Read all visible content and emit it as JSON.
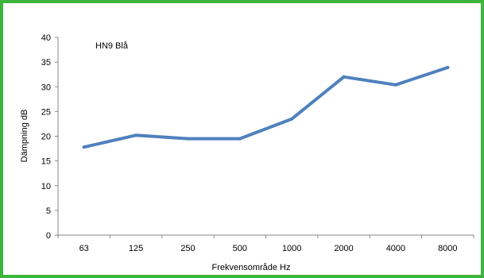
{
  "chart_data": {
    "type": "line",
    "categories": [
      "63",
      "125",
      "250",
      "500",
      "1000",
      "2000",
      "4000",
      "8000"
    ],
    "series": [
      {
        "name": "HN9 Blå",
        "values": [
          17.8,
          20.2,
          19.5,
          19.5,
          23.5,
          32.0,
          30.4,
          33.9
        ]
      }
    ],
    "xlabel": "Frekvensområde Hz",
    "ylabel": "Dämpning dB",
    "ylim": [
      0,
      40
    ],
    "yticks": [
      "0",
      "5",
      "10",
      "15",
      "20",
      "25",
      "30",
      "35",
      "40"
    ],
    "grid": false,
    "legend": "top-left",
    "line_color": "#4f81bd",
    "frame_color": "#3db53d"
  }
}
